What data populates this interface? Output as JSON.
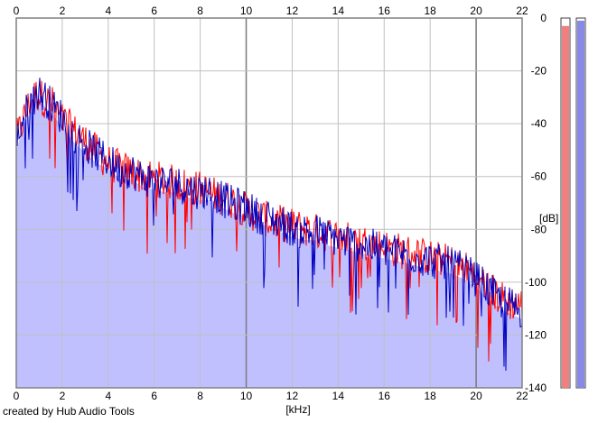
{
  "credit": "created by Hub Audio Tools",
  "chart_data": {
    "type": "area",
    "xlabel": "[kHz]",
    "ylabel": "[dB]",
    "xlim": [
      0,
      22
    ],
    "ylim": [
      -140,
      0
    ],
    "x_ticks": [
      0,
      2,
      4,
      6,
      8,
      10,
      12,
      14,
      16,
      18,
      20,
      22
    ],
    "y_ticks": [
      0,
      -20,
      -40,
      -60,
      -80,
      -100,
      -120,
      -140
    ],
    "grid": true,
    "colors": {
      "fill": "#c0c0ff",
      "grid": "#c0c0c0",
      "major_grid": "#7a7a7a",
      "frame": "#808080",
      "channel_a": "#ff0000",
      "channel_b": "#0000c0",
      "meter_a_fill": "#f08080",
      "meter_b_fill": "#8888e8"
    },
    "series": [
      {
        "color_key": "channel_a",
        "x": [
          0,
          0.3,
          0.6,
          0.9,
          1.2,
          1.6,
          2,
          2.5,
          3,
          3.5,
          4,
          4.5,
          5,
          5.5,
          6,
          6.5,
          7,
          7.5,
          8,
          8.5,
          9,
          9.5,
          10,
          10.5,
          11,
          11.5,
          12,
          12.5,
          13,
          13.5,
          14,
          14.5,
          15,
          15.5,
          16,
          16.5,
          17,
          17.5,
          18,
          18.5,
          19,
          19.5,
          20,
          20.5,
          21,
          21.5,
          22
        ],
        "values": [
          -45,
          -38,
          -31,
          -28,
          -30,
          -32,
          -38,
          -42,
          -46,
          -50,
          -54,
          -56,
          -58,
          -59,
          -60,
          -61,
          -62,
          -63,
          -64,
          -66,
          -67,
          -69,
          -72,
          -74,
          -76,
          -77,
          -78,
          -79,
          -80,
          -81,
          -82,
          -83,
          -84,
          -85,
          -86,
          -87,
          -88,
          -89,
          -90,
          -91,
          -92,
          -94,
          -97,
          -101,
          -105,
          -107,
          -108
        ]
      },
      {
        "color_key": "channel_b",
        "x": [
          0,
          0.3,
          0.6,
          0.9,
          1.2,
          1.6,
          2,
          2.5,
          3,
          3.5,
          4,
          4.5,
          5,
          5.5,
          6,
          6.5,
          7,
          7.5,
          8,
          8.5,
          9,
          9.5,
          10,
          10.5,
          11,
          11.5,
          12,
          12.5,
          13,
          13.5,
          14,
          14.5,
          15,
          15.5,
          16,
          16.5,
          17,
          17.5,
          18,
          18.5,
          19,
          19.5,
          20,
          20.5,
          21,
          21.5,
          22
        ],
        "values": [
          -46,
          -37,
          -32,
          -27,
          -29,
          -33,
          -37,
          -43,
          -47,
          -51,
          -53,
          -57,
          -57,
          -60,
          -61,
          -62,
          -62,
          -64,
          -65,
          -65,
          -68,
          -70,
          -71,
          -74,
          -75,
          -77,
          -79,
          -80,
          -80,
          -82,
          -83,
          -84,
          -85,
          -86,
          -87,
          -88,
          -89,
          -90,
          -91,
          -92,
          -93,
          -95,
          -98,
          -102,
          -106,
          -108,
          -110
        ]
      }
    ],
    "level_meters": [
      {
        "color_key": "meter_a_fill",
        "value": -3
      },
      {
        "color_key": "meter_b_fill",
        "value": -1
      }
    ]
  }
}
